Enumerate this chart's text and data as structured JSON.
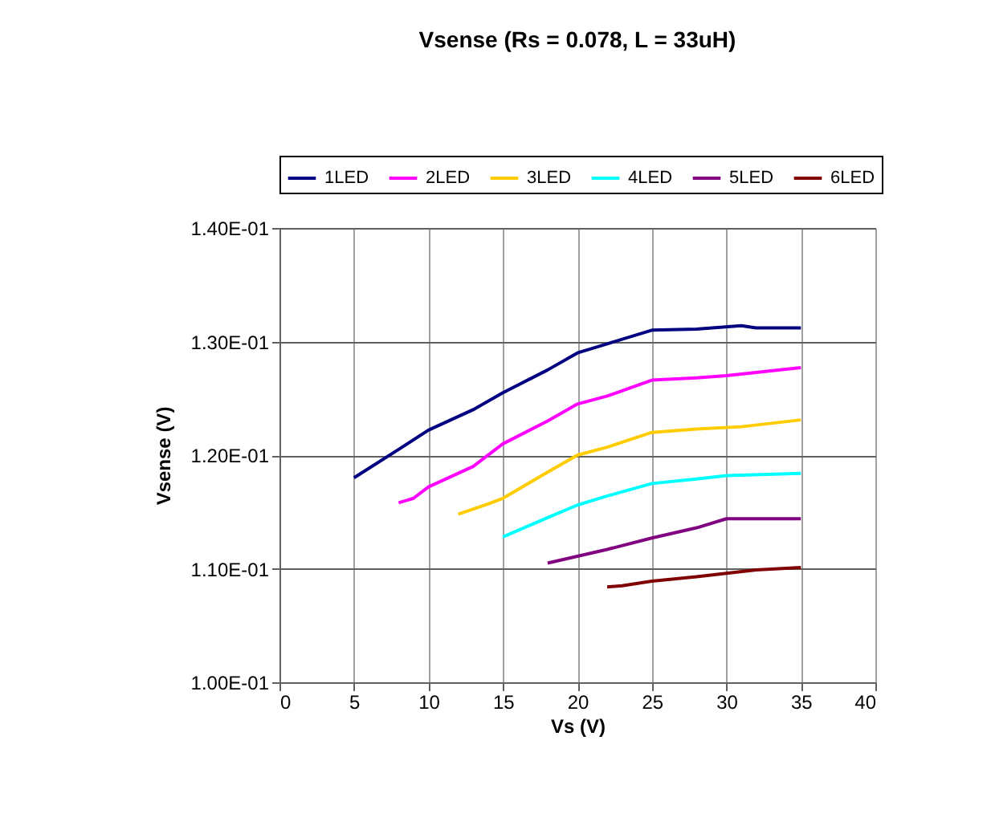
{
  "chart_data": {
    "type": "line",
    "title": "Vsense (Rs = 0.078, L = 33uH)",
    "xlabel": "Vs (V)",
    "ylabel": "Vsense (V)",
    "xlim": [
      0,
      40
    ],
    "xticks": [
      0,
      5,
      10,
      15,
      20,
      25,
      30,
      35,
      40
    ],
    "ylim": [
      0.1,
      0.14
    ],
    "yticks": [
      {
        "value": 0.1,
        "label": "1.00E-01"
      },
      {
        "value": 0.11,
        "label": "1.10E-01"
      },
      {
        "value": 0.12,
        "label": "1.20E-01"
      },
      {
        "value": 0.13,
        "label": "1.30E-01"
      },
      {
        "value": 0.14,
        "label": "1.40E-01"
      }
    ],
    "grid": true,
    "legend": "top",
    "marker": "none",
    "line_style": "solid",
    "series": [
      {
        "name": "1LED",
        "color": "#000080",
        "x": [
          5,
          8,
          10,
          13,
          15,
          18,
          20,
          22,
          25,
          28,
          31,
          32,
          35
        ],
        "values": [
          0.118,
          0.1205,
          0.1222,
          0.124,
          0.1255,
          0.1275,
          0.129,
          0.1298,
          0.131,
          0.1311,
          0.1314,
          0.1312,
          0.1312
        ]
      },
      {
        "name": "2LED",
        "color": "#ff00ff",
        "x": [
          8,
          9,
          10,
          13,
          15,
          18,
          20,
          22,
          25,
          28,
          30,
          35
        ],
        "values": [
          0.1158,
          0.1162,
          0.1172,
          0.119,
          0.121,
          0.123,
          0.1245,
          0.1252,
          0.1266,
          0.1268,
          0.127,
          0.1277
        ]
      },
      {
        "name": "3LED",
        "color": "#ffcc00",
        "x": [
          12,
          14,
          15,
          18,
          20,
          22,
          25,
          28,
          31,
          35
        ],
        "values": [
          0.1148,
          0.1157,
          0.1162,
          0.1185,
          0.12,
          0.1207,
          0.122,
          0.1223,
          0.1225,
          0.1231
        ]
      },
      {
        "name": "4LED",
        "color": "#00ffff",
        "x": [
          15,
          18,
          20,
          22,
          25,
          28,
          30,
          35
        ],
        "values": [
          0.1128,
          0.1145,
          0.1156,
          0.1164,
          0.1175,
          0.1179,
          0.1182,
          0.1184
        ]
      },
      {
        "name": "5LED",
        "color": "#800080",
        "x": [
          18,
          20,
          22,
          25,
          28,
          30,
          35
        ],
        "values": [
          0.1105,
          0.1111,
          0.1117,
          0.1127,
          0.1136,
          0.1144,
          0.1144
        ]
      },
      {
        "name": "6LED",
        "color": "#800000",
        "x": [
          22,
          23,
          25,
          28,
          30,
          32,
          35
        ],
        "values": [
          0.1084,
          0.1085,
          0.1089,
          0.1093,
          0.1096,
          0.1099,
          0.1101
        ]
      }
    ]
  }
}
